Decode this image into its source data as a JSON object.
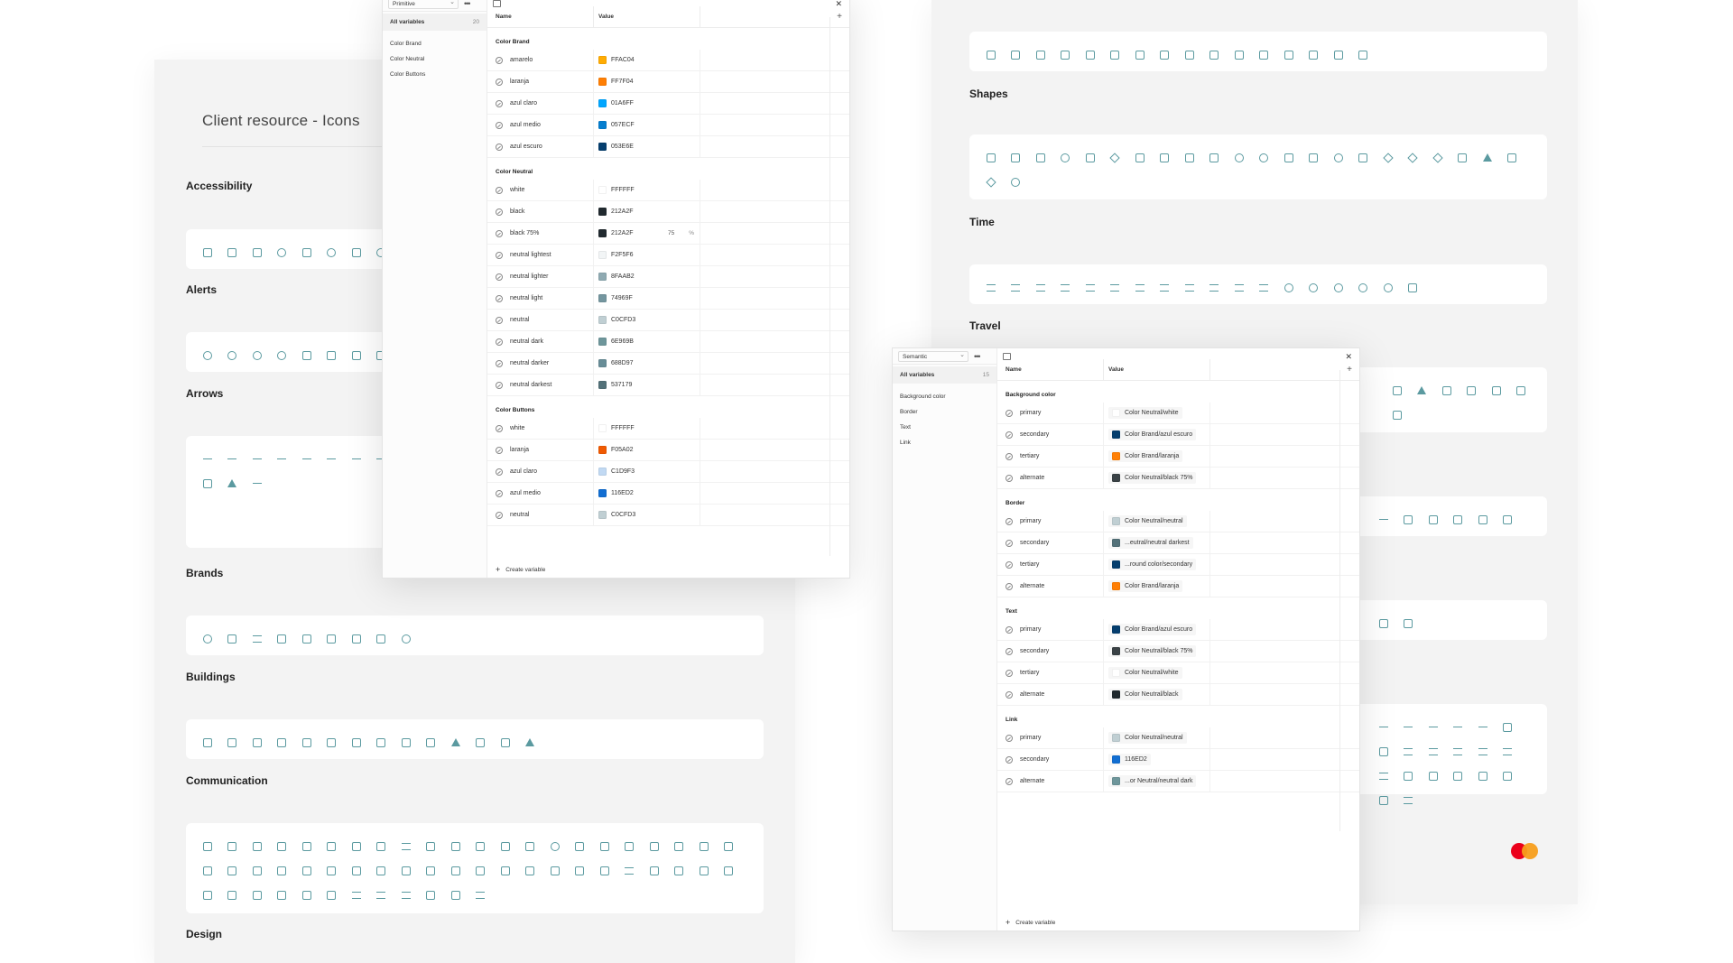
{
  "left_board": {
    "title": "Client resource - Icons",
    "categories": [
      {
        "label": "Accessibility",
        "icons": [
          "wheelchair-icon",
          "accessible-run-icon",
          "eye-off-icon",
          "info-circle-icon",
          "sign-language-icon",
          "target-icon",
          "focus-icon",
          "help-icon"
        ]
      },
      {
        "label": "Alerts",
        "icons": [
          "alarm-clock-icon",
          "alarm-clock-icon",
          "alarm-clock-icon",
          "alarm-clock-icon",
          "alarm-off-icon",
          "bell-icon",
          "bell-ring-icon",
          "bell-icon"
        ]
      },
      {
        "label": "Arrows",
        "icons": [
          "arrow-up-icon",
          "arrow-down-icon",
          "arrow-right-icon",
          "arrow-left-icon",
          "arrow-down-line-icon",
          "arrow-up-line-icon",
          "arrow-collapse-icon",
          "arrow-expand-icon",
          "arrow-down-circle-icon",
          "arrow-left-circle-icon",
          "arrow-right-circle-icon",
          "chevron-up-icon",
          "chevron-down-icon",
          "chevron-left-icon",
          "chevron-right-icon",
          "image-icon",
          "plus-circle-icon",
          "minus-circle-icon",
          "x-circle-icon",
          "check-circle-icon",
          "refresh-icon",
          "undo-icon",
          "redo-icon",
          "warning-icon",
          "swap-icon"
        ]
      },
      {
        "label": "Brands",
        "icons": [
          "globe-icon",
          "google-icon",
          "facebook-icon",
          "apple-icon",
          "instagram-icon",
          "linkedin-icon",
          "x-icon",
          "youtube-icon",
          "dribbble-icon"
        ]
      },
      {
        "label": "Buildings",
        "icons": [
          "home-icon",
          "home-icon",
          "home-icon",
          "home-icon",
          "home-icon",
          "home-icon",
          "home-icon",
          "building-icon",
          "building-icon",
          "building-icon",
          "bank-icon",
          "store-icon",
          "warehouse-icon",
          "tent-icon"
        ]
      },
      {
        "label": "Communication",
        "icons": [
          "phone-icon",
          "phone-call-icon",
          "phone-incoming-icon",
          "phone-off-icon",
          "phone-outgoing-icon",
          "chat-icon",
          "chat-icon",
          "chat-icon",
          "message-square-icon",
          "message-plus-icon",
          "message-check-icon",
          "message-text-icon",
          "message-dots-icon",
          "message-edit-icon",
          "message-info-icon",
          "message-dots-icon",
          "message-icon",
          "message-x-icon",
          "message-alert-icon",
          "message-text-icon",
          "message-icon",
          "message-heart-icon",
          "message-icon",
          "message-icon",
          "message-icon",
          "message-icon",
          "message-check-icon",
          "message-icon",
          "message-icon",
          "message-icon",
          "message-icon",
          "message-icon",
          "message-icon",
          "message-icon",
          "chat-bubble-icon",
          "chat-bubble-icon",
          "chat-bubble-icon",
          "chat-bubble-icon",
          "chat-bubble-icon",
          "message-square-icon",
          "message-add-icon",
          "message-text-icon",
          "message-text-icon",
          "message-text-icon",
          "message-text-icon",
          "message-text-icon",
          "message-text-icon",
          "message-text-icon",
          "edit-icon",
          "pencil-icon",
          "mail-icon",
          "mail-open-icon",
          "mail-icon",
          "messages-icon",
          "chats-icon",
          "voicemail-icon"
        ]
      },
      {
        "label": "Design",
        "icons": []
      }
    ]
  },
  "right_board": {
    "categories": [
      {
        "label": "",
        "icons": [
          "eye-icon",
          "eye-icon",
          "eye-off-icon",
          "shield-icon",
          "shield-icon",
          "shield-icon",
          "shield-check-icon",
          "shield-icon",
          "shield-check-icon",
          "shield-check-icon",
          "shield-filled-icon",
          "lock-icon",
          "lock-icon",
          "lock-icon",
          "lock-open-icon",
          "key-icon"
        ]
      },
      {
        "label": "Shapes",
        "icons": [
          "square-icon",
          "square-icon",
          "square-icon",
          "circle-icon",
          "cube-icon",
          "polygon-icon",
          "blob-icon",
          "flag-icon",
          "cylinder-icon",
          "moon-icon",
          "circle-icon",
          "half-circle-icon",
          "drop-icon",
          "heart-icon",
          "target-icon",
          "shield-icon",
          "star-icon",
          "badge-icon",
          "star-icon",
          "frame-icon",
          "triangle-icon",
          "grid-icon",
          "badge-check-icon",
          "circle-icon"
        ]
      },
      {
        "label": "Time",
        "icons": [
          "calendar-icon",
          "calendar-icon",
          "calendar-check-icon",
          "calendar-check-icon",
          "calendar-icon",
          "calendar-icon",
          "calendar-icon",
          "calendar-icon",
          "calendar-icon",
          "calendar-icon",
          "calendar-icon",
          "calendar-icon",
          "clock-icon",
          "clock-icon",
          "clock-history-icon",
          "timer-icon",
          "history-icon",
          "hourglass-icon"
        ]
      },
      {
        "label": "Travel",
        "icons": [
          "map-icon",
          "anchor-icon",
          "ticket-icon",
          "bus-icon",
          "car-icon",
          "car-front-icon",
          "suitcase-icon"
        ]
      },
      {
        "label": "",
        "icons": [
          "route-icon",
          "pin-icon",
          "login-icon",
          "logout-icon",
          "door-enter-icon",
          "door-exit-icon"
        ]
      },
      {
        "label": "",
        "icons": [
          "recycle-icon",
          "water-drop-icon"
        ]
      },
      {
        "label": "",
        "icons": [
          "sort-icon",
          "sort-icon",
          "sort-desc-icon",
          "sort-asc-icon",
          "sort-icon",
          "tag-icon",
          "text-icon",
          "book-icon",
          "stack-icon",
          "bookmark-icon",
          "bookmark-plus-icon",
          "bookmark-check-icon",
          "bookmark-icon",
          "link-off-icon",
          "eraser-icon",
          "link-icon",
          "link-icon",
          "send-icon",
          "eye-icon",
          "bookmark-icon"
        ]
      }
    ]
  },
  "primitive_panel": {
    "collection": "Primitive",
    "all_variables": "All variables",
    "count": "20",
    "groups": [
      "Color Brand",
      "Color Neutral",
      "Color Buttons"
    ],
    "col_name": "Name",
    "col_value": "Value",
    "create_label": "Create variable",
    "sections": [
      {
        "title": "Color Brand",
        "rows": [
          {
            "name": "amarelo",
            "value": "FFAC04",
            "color": "#FFAC04"
          },
          {
            "name": "laranja",
            "value": "FF7F04",
            "color": "#FF7F04"
          },
          {
            "name": "azul claro",
            "value": "01A6FF",
            "color": "#01A6FF"
          },
          {
            "name": "azul medio",
            "value": "057ECF",
            "color": "#057ECF"
          },
          {
            "name": "azul escuro",
            "value": "053E6E",
            "color": "#053E6E"
          }
        ]
      },
      {
        "title": "Color Neutral",
        "rows": [
          {
            "name": "white",
            "value": "FFFFFF",
            "color": "#FFFFFF"
          },
          {
            "name": "black",
            "value": "212A2F",
            "color": "#212A2F"
          },
          {
            "name": "black 75%",
            "value": "212A2F",
            "color": "#212A2F",
            "opacity": "75",
            "unit": "%"
          },
          {
            "name": "neutral lightest",
            "value": "F2F5F6",
            "color": "#F2F5F6"
          },
          {
            "name": "neutral lighter",
            "value": "8FAAB2",
            "color": "#8FAAB2"
          },
          {
            "name": "neutral light",
            "value": "74969F",
            "color": "#74969F"
          },
          {
            "name": "neutral",
            "value": "C0CFD3",
            "color": "#C0CFD3"
          },
          {
            "name": "neutral dark",
            "value": "6E969B",
            "color": "#6E969B"
          },
          {
            "name": "neutral darker",
            "value": "688D97",
            "color": "#688D97"
          },
          {
            "name": "neutral darkest",
            "value": "537179",
            "color": "#537179"
          }
        ]
      },
      {
        "title": "Color Buttons",
        "rows": [
          {
            "name": "white",
            "value": "FFFFFF",
            "color": "#FFFFFF"
          },
          {
            "name": "laranja",
            "value": "F05A02",
            "color": "#F05A02"
          },
          {
            "name": "azul claro",
            "value": "C1D9F3",
            "color": "#C1D9F3"
          },
          {
            "name": "azul medio",
            "value": "116ED2",
            "color": "#116ED2"
          },
          {
            "name": "neutral",
            "value": "C0CFD3",
            "color": "#C0CFD3"
          }
        ]
      }
    ]
  },
  "semantic_panel": {
    "collection": "Semantic",
    "all_variables": "All variables",
    "count": "15",
    "groups": [
      "Background color",
      "Border",
      "Text",
      "Link"
    ],
    "col_name": "Name",
    "col_value": "Value",
    "create_label": "Create variable",
    "sections": [
      {
        "title": "Background color",
        "rows": [
          {
            "name": "primary",
            "value": "Color Neutral/white",
            "color": "#FFFFFF"
          },
          {
            "name": "secondary",
            "value": "Color Brand/azul escuro",
            "color": "#053E6E"
          },
          {
            "name": "tertiary",
            "value": "Color Brand/laranja",
            "color": "#FF7F04"
          },
          {
            "name": "alternate",
            "value": "Color Neutral/black 75%",
            "color": "#3a4246"
          }
        ]
      },
      {
        "title": "Border",
        "rows": [
          {
            "name": "primary",
            "value": "Color Neutral/neutral",
            "color": "#C0CFD3"
          },
          {
            "name": "secondary",
            "value": "...eutral/neutral darkest",
            "color": "#537179"
          },
          {
            "name": "tertiary",
            "value": "...round color/secondary",
            "color": "#053E6E"
          },
          {
            "name": "alternate",
            "value": "Color Brand/laranja",
            "color": "#FF7F04"
          }
        ]
      },
      {
        "title": "Text",
        "rows": [
          {
            "name": "primary",
            "value": "Color Brand/azul escuro",
            "color": "#053E6E"
          },
          {
            "name": "secondary",
            "value": "Color Neutral/black 75%",
            "color": "#3a4246"
          },
          {
            "name": "tertiary",
            "value": "Color Neutral/white",
            "color": "#FFFFFF"
          },
          {
            "name": "alternate",
            "value": "Color Neutral/black",
            "color": "#212A2F"
          }
        ]
      },
      {
        "title": "Link",
        "rows": [
          {
            "name": "primary",
            "value": "Color Neutral/neutral",
            "color": "#C0CFD3"
          },
          {
            "name": "secondary",
            "value": "116ED2",
            "color": "#116ED2"
          },
          {
            "name": "alternate",
            "value": "...or Neutral/neutral dark",
            "color": "#6E969B"
          }
        ]
      }
    ]
  },
  "colors": {
    "icon_accent": "#5b9aa0",
    "board_bg": "#f3f3f3"
  }
}
